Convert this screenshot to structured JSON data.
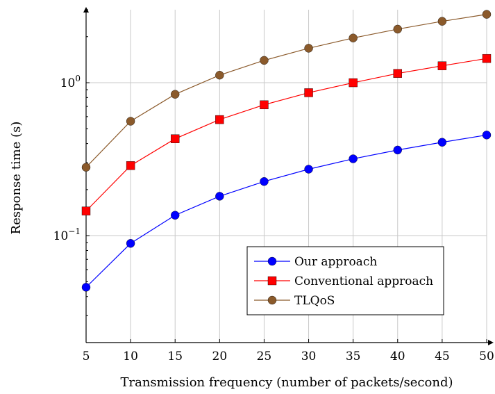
{
  "chart_data": {
    "type": "line",
    "xlabel": "Transmission frequency (number of packets/second)",
    "ylabel": "Response time (s)",
    "x": [
      5,
      10,
      15,
      20,
      25,
      30,
      35,
      40,
      45,
      50
    ],
    "xlim": [
      5,
      50
    ],
    "ylim": [
      0.02,
      3.0
    ],
    "yscale": "log",
    "x_ticks": [
      "5",
      "10",
      "15",
      "20",
      "25",
      "30",
      "35",
      "40",
      "45",
      "50"
    ],
    "y_ticks": [
      {
        "value": 0.1,
        "base": "10",
        "exp": "−1"
      },
      {
        "value": 1,
        "base": "10",
        "exp": "0"
      }
    ],
    "grid": true,
    "legend_position": "bottom-right",
    "series": [
      {
        "name": "Our approach",
        "color": "#0000ff",
        "marker": "circle",
        "values": [
          0.046,
          0.089,
          0.136,
          0.181,
          0.226,
          0.272,
          0.318,
          0.363,
          0.408,
          0.455
        ]
      },
      {
        "name": "Conventional approach",
        "color": "#ff0000",
        "marker": "square",
        "values": [
          0.145,
          0.287,
          0.43,
          0.574,
          0.717,
          0.86,
          1.0,
          1.15,
          1.29,
          1.44
        ]
      },
      {
        "name": "TLQoS",
        "color": "#8b5a2b",
        "marker": "circle",
        "values": [
          0.28,
          0.56,
          0.84,
          1.12,
          1.4,
          1.68,
          1.96,
          2.24,
          2.52,
          2.8
        ]
      }
    ]
  }
}
